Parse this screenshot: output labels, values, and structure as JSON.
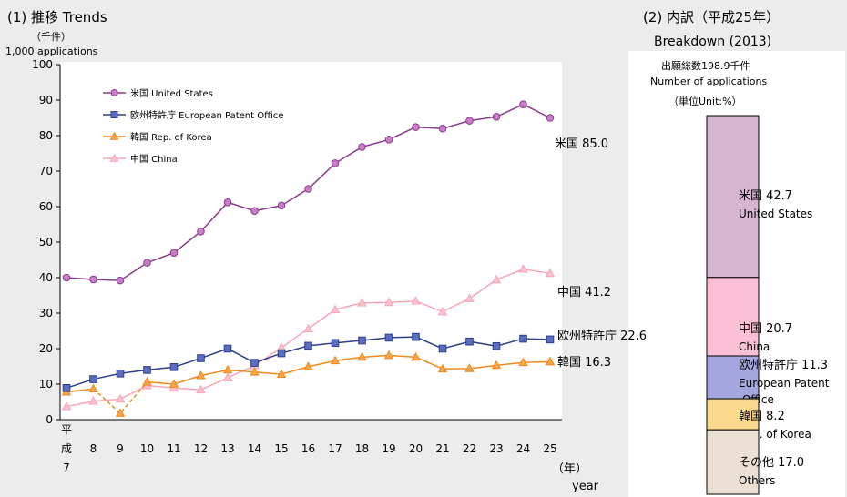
{
  "left": {
    "title": "(1)  推移  Trends",
    "unit_ja": "（千件）",
    "unit_en": "1,000 applications",
    "x_unit_ja": "（年）",
    "x_unit_en": "year"
  },
  "right": {
    "title": "(2)  内訳（平成25年）",
    "subtitle": "Breakdown (2013)",
    "total": "出願総数198.9千件",
    "total_en": "Number of applications",
    "unit": "（単位Unit:%）"
  },
  "chart_data": [
    {
      "type": "line",
      "title": "(1)  推移  Trends",
      "ylabel": "（千件） 1,000 applications",
      "xlabel": "（年） year",
      "ylim": [
        0,
        100
      ],
      "yticks": [
        0,
        10,
        20,
        30,
        40,
        50,
        60,
        70,
        80,
        90,
        100
      ],
      "categories": [
        "平成7",
        "8",
        "9",
        "10",
        "11",
        "12",
        "13",
        "14",
        "15",
        "16",
        "17",
        "18",
        "19",
        "20",
        "21",
        "22",
        "23",
        "24",
        "25"
      ],
      "tick_labels": [
        "平\n成\n7",
        "8",
        "9",
        "10",
        "11",
        "12",
        "13",
        "14",
        "15",
        "16",
        "17",
        "18",
        "19",
        "20",
        "21",
        "22",
        "23",
        "24",
        "25"
      ],
      "legend_position": "top-left",
      "grid": false,
      "series": [
        {
          "name": "米国 United States",
          "end_label": "米国 85.0",
          "color": "#8b3a8b",
          "fill": "#c77dc7",
          "marker": "circle",
          "values": [
            40.0,
            39.5,
            39.2,
            44.2,
            47.0,
            53.0,
            61.2,
            58.8,
            60.3,
            65.0,
            72.2,
            76.8,
            78.9,
            82.4,
            82.0,
            84.2,
            85.3,
            88.8,
            85.0
          ]
        },
        {
          "name": "欧州特許庁 European Patent Office",
          "end_label": "欧州特許庁 22.6",
          "color": "#2e3f8a",
          "fill": "#5a6ec0",
          "marker": "square",
          "values": [
            8.9,
            11.4,
            13.0,
            14.0,
            14.8,
            17.3,
            20.0,
            16.0,
            18.7,
            20.8,
            21.6,
            22.3,
            23.1,
            23.3,
            20.0,
            22.0,
            20.7,
            22.8,
            22.6
          ]
        },
        {
          "name": "韓国 Rep. of Korea",
          "end_label": "韓国 16.3",
          "color": "#f08a1c",
          "fill": "#f7a54a",
          "marker": "triangle",
          "values": [
            7.8,
            8.7,
            1.8,
            10.6,
            10.0,
            12.4,
            14.0,
            13.4,
            12.8,
            14.9,
            16.6,
            17.6,
            18.1,
            17.6,
            14.3,
            14.4,
            15.3,
            16.1,
            16.3
          ]
        },
        {
          "name": "中国 China",
          "end_label": "中国 41.2",
          "color": "#f7a6b6",
          "fill": "#f9c2cf",
          "marker": "triangle",
          "values": [
            3.7,
            5.2,
            5.8,
            9.6,
            8.9,
            8.4,
            11.8,
            15.2,
            20.3,
            25.6,
            31.0,
            32.9,
            33.0,
            33.4,
            30.4,
            34.1,
            39.4,
            42.4,
            41.2
          ]
        }
      ]
    },
    {
      "type": "bar",
      "subtype": "stacked-100",
      "title": "(2)  内訳（平成25年）",
      "subtitle": "Breakdown (2013)",
      "segments": [
        {
          "name_ja": "米国",
          "name_en": "United States",
          "value": 42.7,
          "label": "米国 42.7",
          "sub": "United States",
          "color": "#d5b5d0"
        },
        {
          "name_ja": "中国",
          "name_en": "China",
          "value": 20.7,
          "label": "中国 20.7",
          "sub": "China",
          "color": "#fbbfd6"
        },
        {
          "name_ja": "欧州特許庁",
          "name_en": "European Patent Office",
          "value": 11.3,
          "label": "欧州特許庁 11.3",
          "sub": "European Patent\n Office",
          "color": "#a5a5e0"
        },
        {
          "name_ja": "韓国",
          "name_en": "Rep. of Korea",
          "value": 8.2,
          "label": "韓国  8.2",
          "sub": "Rep. of Korea",
          "color": "#fbd98c"
        },
        {
          "name_ja": "その他",
          "name_en": "Others",
          "value": 17.0,
          "label": "その他 17.0",
          "sub": "Others",
          "color": "#ece0d4"
        }
      ]
    }
  ]
}
